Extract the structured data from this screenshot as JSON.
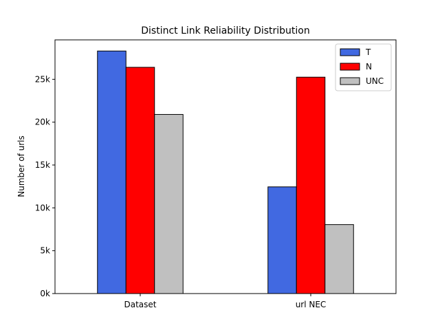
{
  "chart_data": {
    "type": "bar",
    "title": "Distinct Link Reliability Distribution",
    "xlabel": "",
    "ylabel": "Number of urls",
    "categories": [
      "Dataset",
      "url NEC"
    ],
    "series": [
      {
        "name": "T",
        "values": [
          28300,
          12450
        ],
        "color": "#4169e1"
      },
      {
        "name": "N",
        "values": [
          26400,
          25250
        ],
        "color": "#ff0000"
      },
      {
        "name": "UNC",
        "values": [
          20900,
          8050
        ],
        "color": "#c0c0c0"
      }
    ],
    "ylim": [
      0,
      29600
    ],
    "yticks": [
      0,
      5000,
      10000,
      15000,
      20000,
      25000
    ],
    "ytick_labels": [
      "0k",
      "5k",
      "10k",
      "15k",
      "20k",
      "25k"
    ],
    "grid": false,
    "legend_position": "top-right"
  }
}
